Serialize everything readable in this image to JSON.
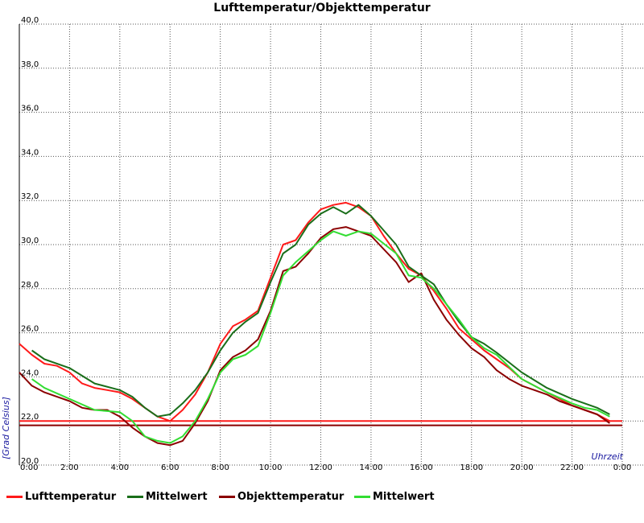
{
  "chart_data": {
    "type": "line",
    "title": "Lufttemperatur/Objekttemperatur",
    "xlabel": "Uhrzeit",
    "ylabel": "[Grad Celsius]",
    "xlim": [
      0,
      24
    ],
    "ylim": [
      20,
      40
    ],
    "grid": true,
    "legend_position": "bottom",
    "y_ticks": [
      "20,0",
      "22,0",
      "24,0",
      "26,0",
      "28,0",
      "30,0",
      "32,0",
      "34,0",
      "36,0",
      "38,0",
      "40,0"
    ],
    "x_ticks": [
      "0:00",
      "2:00",
      "4:00",
      "6:00",
      "8:00",
      "10:00",
      "12:00",
      "14:00",
      "16:00",
      "18:00",
      "20:00",
      "22:00",
      "0:00"
    ],
    "series": [
      {
        "name": "Lufttemperatur",
        "color": "#ff1a1a",
        "x": [
          0,
          0.5,
          1,
          1.5,
          2,
          2.5,
          3,
          3.5,
          4,
          4.5,
          5,
          5.5,
          6,
          6.5,
          7,
          7.5,
          8,
          8.5,
          9,
          9.5,
          10,
          10.5,
          11,
          11.5,
          12,
          12.5,
          13,
          13.5,
          14,
          14.5,
          15,
          15.5,
          16,
          16.5,
          17,
          17.5,
          18,
          18.5,
          19,
          19.5,
          20,
          20.5,
          21,
          21.5,
          22,
          22.5,
          23,
          23.5
        ],
        "values": [
          25.5,
          25.0,
          24.6,
          24.5,
          24.2,
          23.7,
          23.5,
          23.4,
          23.3,
          23.0,
          22.6,
          22.2,
          22.0,
          22.5,
          23.2,
          24.2,
          25.5,
          26.3,
          26.6,
          27.0,
          28.5,
          30.0,
          30.2,
          31.0,
          31.6,
          31.8,
          31.9,
          31.7,
          31.3,
          30.4,
          29.6,
          28.9,
          28.6,
          27.9,
          27.1,
          26.2,
          25.7,
          25.2,
          24.8,
          24.4,
          23.9,
          23.6,
          23.3,
          23.0,
          22.7,
          22.5,
          22.3,
          22.0
        ]
      },
      {
        "name": "Mittelwert",
        "color": "#1a6e1a",
        "x": [
          0.5,
          1,
          2,
          3,
          4,
          4.5,
          5,
          5.5,
          6,
          6.5,
          7,
          7.5,
          8,
          8.5,
          9,
          9.5,
          10,
          10.5,
          11,
          11.5,
          12,
          12.5,
          13,
          13.5,
          14,
          15,
          15.5,
          16,
          16.5,
          17,
          17.5,
          18,
          18.5,
          19,
          20,
          21,
          22,
          22.5,
          23,
          23.5
        ],
        "values": [
          25.2,
          24.8,
          24.4,
          23.7,
          23.4,
          23.1,
          22.6,
          22.2,
          22.3,
          22.8,
          23.4,
          24.2,
          25.2,
          26.0,
          26.5,
          26.9,
          28.3,
          29.6,
          30.0,
          30.9,
          31.4,
          31.7,
          31.4,
          31.8,
          31.3,
          30.0,
          29.0,
          28.6,
          28.2,
          27.3,
          26.5,
          25.8,
          25.5,
          25.1,
          24.2,
          23.5,
          23.0,
          22.8,
          22.6,
          22.3
        ]
      },
      {
        "name": "Objekttemperatur",
        "color": "#8b0000",
        "x": [
          0,
          0.5,
          1,
          1.5,
          2,
          2.5,
          3,
          3.5,
          4,
          4.5,
          5,
          5.5,
          6,
          6.5,
          7,
          7.5,
          8,
          8.5,
          9,
          9.5,
          10,
          10.5,
          11,
          11.5,
          12,
          12.5,
          13,
          13.5,
          14,
          14.5,
          15,
          15.5,
          16,
          16.5,
          17,
          17.5,
          18,
          18.5,
          19,
          19.5,
          20,
          20.5,
          21,
          21.5,
          22,
          22.5,
          23,
          23.5
        ],
        "values": [
          24.2,
          23.6,
          23.3,
          23.1,
          22.9,
          22.6,
          22.5,
          22.5,
          22.2,
          21.7,
          21.3,
          21.0,
          20.9,
          21.1,
          21.9,
          22.9,
          24.3,
          24.9,
          25.2,
          25.7,
          27.0,
          28.8,
          29.0,
          29.6,
          30.3,
          30.7,
          30.8,
          30.6,
          30.4,
          29.8,
          29.2,
          28.3,
          28.7,
          27.5,
          26.6,
          25.9,
          25.3,
          24.9,
          24.3,
          23.9,
          23.6,
          23.4,
          23.2,
          22.9,
          22.7,
          22.5,
          22.3,
          21.9
        ]
      },
      {
        "name": "Mittelwert",
        "color": "#33dd33",
        "x": [
          0.5,
          1,
          2,
          3,
          4,
          4.5,
          5,
          5.5,
          6,
          6.5,
          7,
          7.5,
          8,
          8.5,
          9,
          9.5,
          10,
          10.5,
          11,
          11.5,
          12,
          12.5,
          13,
          13.5,
          14,
          15,
          15.5,
          16,
          16.5,
          17,
          17.5,
          18,
          18.5,
          19,
          20,
          21,
          22,
          22.5,
          23,
          23.5
        ],
        "values": [
          23.9,
          23.5,
          23.0,
          22.5,
          22.4,
          22.0,
          21.3,
          21.1,
          21.0,
          21.3,
          22.0,
          23.0,
          24.2,
          24.8,
          25.0,
          25.4,
          26.9,
          28.6,
          29.2,
          29.7,
          30.2,
          30.6,
          30.4,
          30.6,
          30.5,
          29.6,
          28.6,
          28.5,
          28.0,
          27.3,
          26.6,
          25.8,
          25.3,
          25.0,
          23.9,
          23.3,
          22.8,
          22.6,
          22.5,
          22.2
        ]
      }
    ],
    "reference_lines": [
      {
        "value": 22.0,
        "color": "#ff1a1a"
      },
      {
        "value": 21.8,
        "color": "#8b0000"
      }
    ]
  }
}
